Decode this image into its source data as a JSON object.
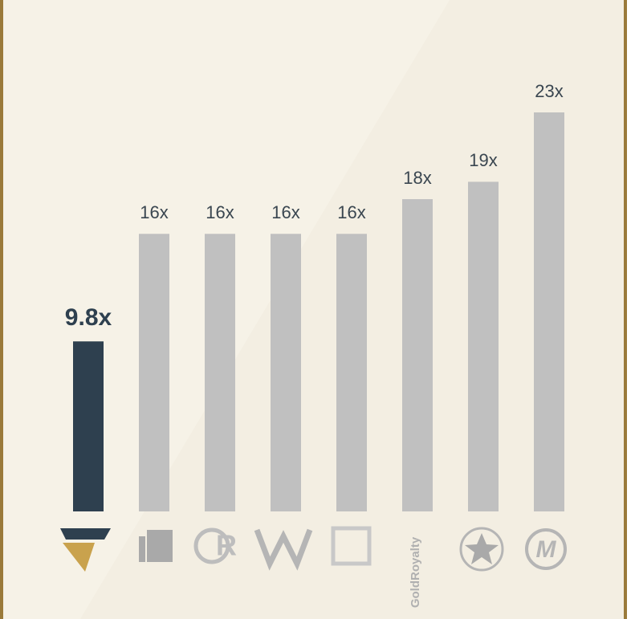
{
  "chart_data": {
    "type": "bar",
    "categories": [
      null,
      null,
      null,
      null,
      null,
      "GoldRoyalty",
      null,
      null
    ],
    "values": [
      9.8,
      16,
      16,
      16,
      16,
      18,
      19,
      23
    ],
    "value_labels": [
      "9.8x",
      "16x",
      "16x",
      "16x",
      "16x",
      "18x",
      "19x",
      "23x"
    ],
    "colors": [
      "#2e404f",
      "#c0c0c0",
      "#c0c0c0",
      "#c0c0c0",
      "#c0c0c0",
      "#c0c0c0",
      "#c0c0c0",
      "#c0c0c0"
    ]
  }
}
